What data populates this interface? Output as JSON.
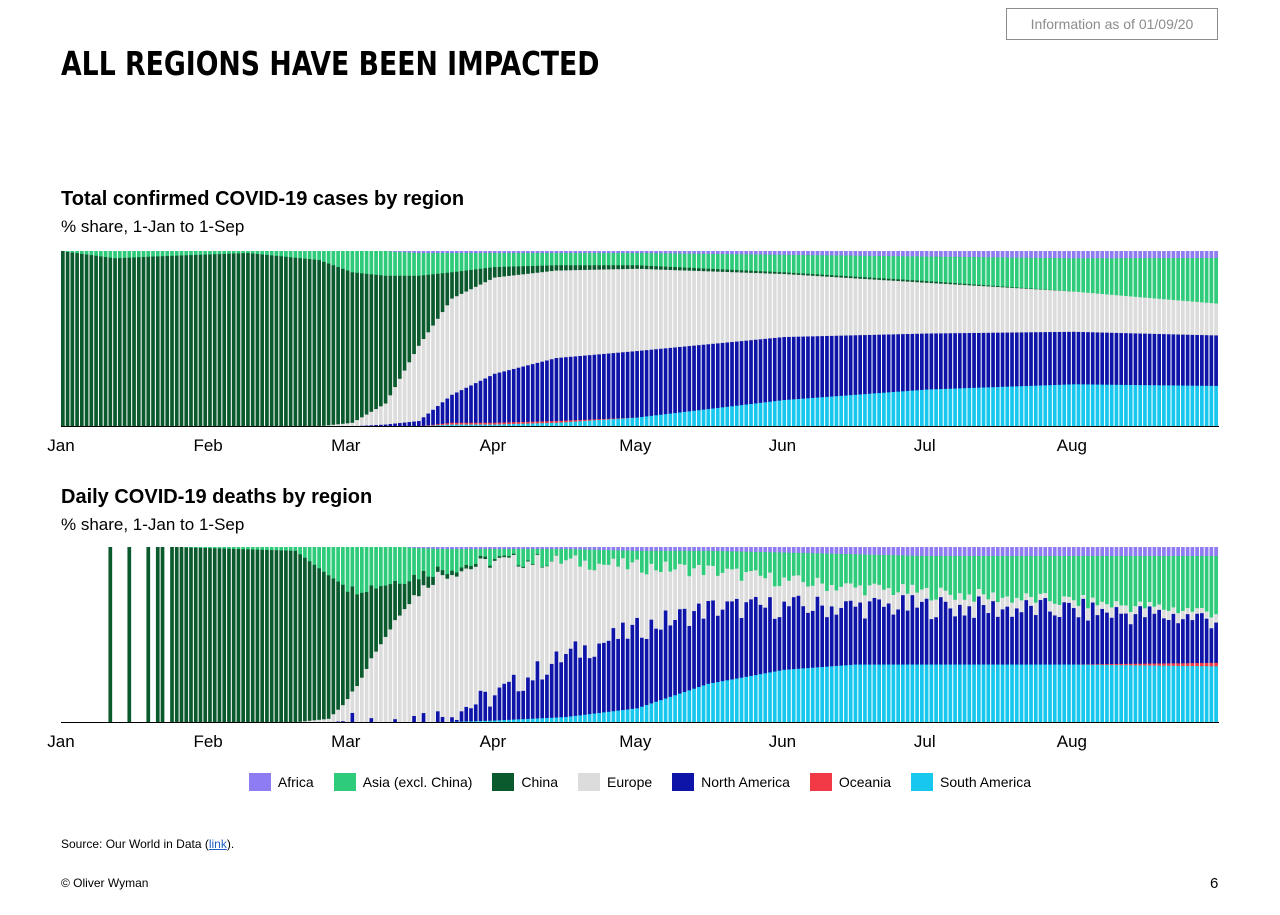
{
  "info": "Information as of 01/09/20",
  "title": "ALL REGIONS HAVE BEEN IMPACTED",
  "colors": {
    "Africa": "#8e7cf2",
    "Asia (excl. China)": "#2ecc7a",
    "China": "#0b5a2e",
    "Europe": "#dcdcdc",
    "North America": "#0f14a8",
    "Oceania": "#f23a46",
    "South America": "#18c7ee"
  },
  "legend": [
    "Africa",
    "Asia (excl. China)",
    "China",
    "Europe",
    "North America",
    "Oceania",
    "South America"
  ],
  "chart_data": [
    {
      "type": "bar",
      "stacked": "percent",
      "title": "Total confirmed COVID-19 cases by region",
      "subtitle": "% share, 1-Jan to 1-Sep",
      "x_tick_labels": [
        "Jan",
        "Feb",
        "Mar",
        "Apr",
        "May",
        "Jun",
        "Jul",
        "Aug"
      ],
      "x_ticks_day_of_year": [
        1,
        32,
        61,
        92,
        122,
        153,
        183,
        214
      ],
      "days": 244,
      "ylim": [
        0,
        100
      ],
      "series_order_bottom_to_top": [
        "South America",
        "Oceania",
        "North America",
        "Europe",
        "China",
        "Asia (excl. China)",
        "Africa"
      ],
      "keyframes": [
        {
          "day": 1,
          "South America": 0,
          "Oceania": 0,
          "North America": 0,
          "Europe": 0,
          "China": 100,
          "Asia (excl. China)": 0,
          "Africa": 0
        },
        {
          "day": 12,
          "South America": 0,
          "Oceania": 0,
          "North America": 0,
          "Europe": 0,
          "China": 96,
          "Asia (excl. China)": 4,
          "Africa": 0
        },
        {
          "day": 20,
          "South America": 0,
          "Oceania": 0,
          "North America": 0,
          "Europe": 0,
          "China": 97,
          "Asia (excl. China)": 3,
          "Africa": 0
        },
        {
          "day": 40,
          "South America": 0,
          "Oceania": 0,
          "North America": 0,
          "Europe": 0,
          "China": 99,
          "Asia (excl. China)": 1,
          "Africa": 0
        },
        {
          "day": 55,
          "South America": 0,
          "Oceania": 0,
          "North America": 0,
          "Europe": 0,
          "China": 95,
          "Asia (excl. China)": 5,
          "Africa": 0
        },
        {
          "day": 62,
          "South America": 0,
          "Oceania": 0,
          "North America": 0,
          "Europe": 2,
          "China": 86,
          "Asia (excl. China)": 12,
          "Africa": 0
        },
        {
          "day": 69,
          "South America": 0,
          "Oceania": 0,
          "North America": 1,
          "Europe": 12,
          "China": 73,
          "Asia (excl. China)": 14,
          "Africa": 0
        },
        {
          "day": 76,
          "South America": 0,
          "Oceania": 0,
          "North America": 3,
          "Europe": 43,
          "China": 40,
          "Asia (excl. China)": 13,
          "Africa": 1
        },
        {
          "day": 83,
          "South America": 1,
          "Oceania": 1,
          "North America": 16,
          "Europe": 55,
          "China": 15,
          "Asia (excl. China)": 11,
          "Africa": 1
        },
        {
          "day": 92,
          "South America": 1,
          "Oceania": 1,
          "North America": 28,
          "Europe": 55,
          "China": 6,
          "Asia (excl. China)": 8,
          "Africa": 1
        },
        {
          "day": 105,
          "South America": 2,
          "Oceania": 1,
          "North America": 36,
          "Europe": 50,
          "China": 3,
          "Asia (excl. China)": 7,
          "Africa": 1
        },
        {
          "day": 122,
          "South America": 5,
          "Oceania": 0,
          "North America": 38,
          "Europe": 47,
          "China": 2,
          "Asia (excl. China)": 7,
          "Africa": 1
        },
        {
          "day": 153,
          "South America": 15,
          "Oceania": 0,
          "North America": 36,
          "Europe": 36,
          "China": 1,
          "Asia (excl. China)": 10,
          "Africa": 2
        },
        {
          "day": 183,
          "South America": 21,
          "Oceania": 0,
          "North America": 32,
          "Europe": 29,
          "China": 1,
          "Asia (excl. China)": 14,
          "Africa": 3
        },
        {
          "day": 214,
          "South America": 24,
          "Oceania": 0,
          "North America": 30,
          "Europe": 23,
          "China": 0,
          "Asia (excl. China)": 19,
          "Africa": 4
        },
        {
          "day": 244,
          "South America": 24,
          "Oceania": 0,
          "North America": 30,
          "Europe": 19,
          "China": 0,
          "Asia (excl. China)": 27,
          "Africa": 4
        }
      ]
    },
    {
      "type": "bar",
      "stacked": "percent",
      "title": "Daily COVID-19 deaths by region",
      "subtitle": "% share, 1-Jan to 1-Sep",
      "x_tick_labels": [
        "Jan",
        "Feb",
        "Mar",
        "Apr",
        "May",
        "Jun",
        "Jul",
        "Aug"
      ],
      "x_ticks_day_of_year": [
        1,
        32,
        61,
        92,
        122,
        153,
        183,
        214
      ],
      "days": 244,
      "ylim": [
        0,
        100
      ],
      "series_order_bottom_to_top": [
        "South America",
        "Oceania",
        "North America",
        "Europe",
        "China",
        "Asia (excl. China)",
        "Africa"
      ],
      "sparse_china_only_days": [
        11,
        15,
        19,
        21,
        22,
        24,
        25
      ],
      "no_data_days_before": 11,
      "keyframes": [
        {
          "day": 26,
          "South America": 0,
          "Oceania": 0,
          "North America": 0,
          "Europe": 0,
          "China": 100,
          "Asia (excl. China)": 0,
          "Africa": 0
        },
        {
          "day": 50,
          "South America": 0,
          "Oceania": 0,
          "North America": 0,
          "Europe": 0,
          "China": 98,
          "Asia (excl. China)": 2,
          "Africa": 0
        },
        {
          "day": 57,
          "South America": 0,
          "Oceania": 0,
          "North America": 0,
          "Europe": 2,
          "China": 82,
          "Asia (excl. China)": 16,
          "Africa": 0
        },
        {
          "day": 62,
          "South America": 0,
          "Oceania": 0,
          "North America": 1,
          "Europe": 14,
          "China": 60,
          "Asia (excl. China)": 25,
          "Africa": 0
        },
        {
          "day": 67,
          "South America": 0,
          "Oceania": 0,
          "North America": 1,
          "Europe": 40,
          "China": 37,
          "Asia (excl. China)": 22,
          "Africa": 0
        },
        {
          "day": 73,
          "South America": 0,
          "Oceania": 0,
          "North America": 2,
          "Europe": 65,
          "China": 15,
          "Asia (excl. China)": 18,
          "Africa": 0
        },
        {
          "day": 80,
          "South America": 0,
          "Oceania": 0,
          "North America": 3,
          "Europe": 81,
          "China": 3,
          "Asia (excl. China)": 12,
          "Africa": 1
        },
        {
          "day": 92,
          "South America": 1,
          "Oceania": 0,
          "North America": 14,
          "Europe": 77,
          "China": 1,
          "Asia (excl. China)": 6,
          "Africa": 1
        },
        {
          "day": 107,
          "South America": 3,
          "Oceania": 0,
          "North America": 35,
          "Europe": 54,
          "China": 0,
          "Asia (excl. China)": 7,
          "Africa": 1
        },
        {
          "day": 122,
          "South America": 8,
          "Oceania": 0,
          "North America": 45,
          "Europe": 36,
          "China": 0,
          "Asia (excl. China)": 9,
          "Africa": 2
        },
        {
          "day": 137,
          "South America": 22,
          "Oceania": 0,
          "North America": 43,
          "Europe": 22,
          "China": 0,
          "Asia (excl. China)": 11,
          "Africa": 2
        },
        {
          "day": 153,
          "South America": 30,
          "Oceania": 0,
          "North America": 36,
          "Europe": 15,
          "China": 0,
          "Asia (excl. China)": 16,
          "Africa": 3
        },
        {
          "day": 168,
          "South America": 33,
          "Oceania": 0,
          "North America": 33,
          "Europe": 11,
          "China": 0,
          "Asia (excl. China)": 19,
          "Africa": 4
        },
        {
          "day": 183,
          "South America": 33,
          "Oceania": 0,
          "North America": 33,
          "Europe": 8,
          "China": 0,
          "Asia (excl. China)": 21,
          "Africa": 5
        },
        {
          "day": 214,
          "South America": 33,
          "Oceania": 0,
          "North America": 31,
          "Europe": 5,
          "China": 0,
          "Asia (excl. China)": 26,
          "Africa": 5
        },
        {
          "day": 244,
          "South America": 32,
          "Oceania": 2,
          "North America": 25,
          "Europe": 4,
          "China": 0,
          "Asia (excl. China)": 32,
          "Africa": 5
        }
      ]
    }
  ],
  "source_prefix": "Source: Our World in Data (",
  "source_link": "link",
  "source_suffix": ").",
  "copyright": "© Oliver Wyman",
  "page_number": "6"
}
